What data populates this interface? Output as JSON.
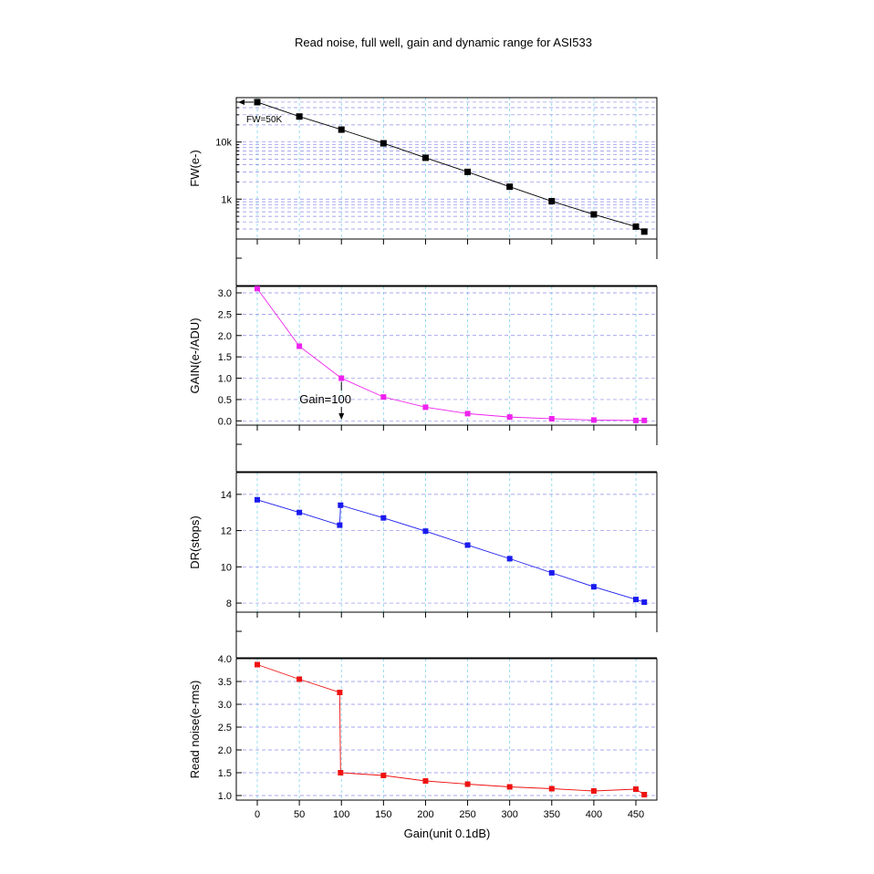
{
  "title": "Read noise, full well, gain and dynamic range for ASI533",
  "chart_data": [
    {
      "type": "line",
      "ylabel": "FW(e-)",
      "yscale": "log",
      "ylim": [
        200,
        60000
      ],
      "yticks": [
        1000,
        10000
      ],
      "ytick_labels": [
        "1k",
        "10k"
      ],
      "color": "#000000",
      "annotation": "FW=50K",
      "x": [
        0,
        50,
        100,
        150,
        200,
        250,
        300,
        350,
        400,
        450,
        460
      ],
      "values": [
        50000,
        28000,
        16500,
        9500,
        5300,
        3000,
        1650,
        920,
        540,
        330,
        270
      ]
    },
    {
      "type": "line",
      "ylabel": "GAIN(e-/ADU)",
      "ylim": [
        -0.1,
        3.15
      ],
      "yticks": [
        0,
        0.5,
        1,
        1.5,
        2,
        2.5,
        3
      ],
      "ytick_labels": [
        "0.0",
        "0.5",
        "1.0",
        "1.5",
        "2.0",
        "2.5",
        "3.0"
      ],
      "color": "#ee22ee",
      "annotation": "Gain=100",
      "x": [
        0,
        50,
        100,
        150,
        200,
        250,
        300,
        350,
        400,
        450,
        460
      ],
      "values": [
        3.1,
        1.75,
        1.0,
        0.56,
        0.32,
        0.17,
        0.09,
        0.05,
        0.02,
        0.01,
        0.01
      ]
    },
    {
      "type": "line",
      "ylabel": "DR(stops)",
      "ylim": [
        7.5,
        15.2
      ],
      "yticks": [
        8,
        10,
        12,
        14
      ],
      "ytick_labels": [
        "8",
        "10",
        "12",
        "14"
      ],
      "color": "#1a1aee",
      "x": [
        0,
        50,
        98,
        99,
        150,
        200,
        250,
        300,
        350,
        400,
        450,
        460
      ],
      "values": [
        13.7,
        13.0,
        12.3,
        13.4,
        12.7,
        11.97,
        11.2,
        10.45,
        9.67,
        8.9,
        8.2,
        8.05
      ]
    },
    {
      "type": "line",
      "ylabel": "Read noise(e-rms)",
      "xlabel": "Gain(unit 0.1dB)",
      "ylim": [
        0.9,
        4.0
      ],
      "yticks": [
        1,
        1.5,
        2,
        2.5,
        3,
        3.5,
        4
      ],
      "ytick_labels": [
        "1.0",
        "1.5",
        "2.0",
        "2.5",
        "3.0",
        "3.5",
        "4.0"
      ],
      "color": "#ee1111",
      "xticks": [
        0,
        50,
        100,
        150,
        200,
        250,
        300,
        350,
        400,
        450
      ],
      "xtick_labels": [
        "0",
        "50",
        "100",
        "150",
        "200",
        "250",
        "300",
        "350",
        "400",
        "450"
      ],
      "x": [
        0,
        50,
        98,
        99,
        150,
        200,
        250,
        300,
        350,
        400,
        450,
        460
      ],
      "values": [
        3.87,
        3.55,
        3.26,
        1.5,
        1.44,
        1.32,
        1.25,
        1.19,
        1.15,
        1.1,
        1.14,
        1.02
      ]
    }
  ]
}
